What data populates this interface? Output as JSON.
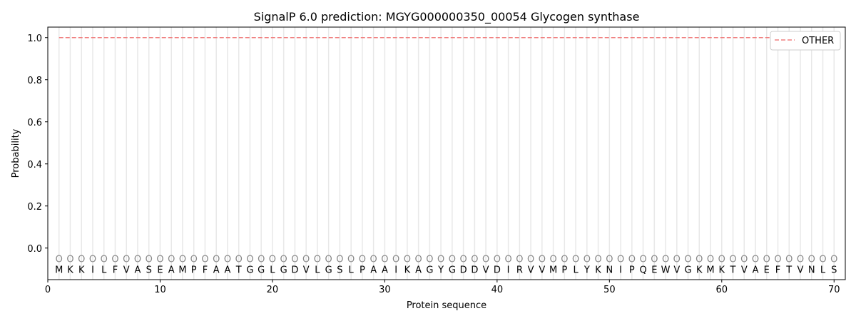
{
  "chart_data": {
    "type": "line",
    "title": "SignalP 6.0 prediction: MGYG000000350_00054 Glycogen synthase",
    "xlabel": "Protein sequence",
    "ylabel": "Probability",
    "xlim": [
      0,
      71
    ],
    "ylim": [
      -0.15,
      1.05
    ],
    "xticks": [
      0,
      10,
      20,
      30,
      40,
      50,
      60,
      70
    ],
    "yticks": [
      0.0,
      0.2,
      0.4,
      0.6,
      0.8,
      1.0
    ],
    "grid": "vertical lines at each residue",
    "legend_position": "top-right",
    "sequence": [
      "M",
      "K",
      "K",
      "I",
      "L",
      "F",
      "V",
      "A",
      "S",
      "E",
      "A",
      "M",
      "P",
      "F",
      "A",
      "A",
      "T",
      "G",
      "G",
      "L",
      "G",
      "D",
      "V",
      "L",
      "G",
      "S",
      "L",
      "P",
      "A",
      "A",
      "I",
      "K",
      "A",
      "G",
      "Y",
      "G",
      "D",
      "D",
      "V",
      "D",
      "I",
      "R",
      "V",
      "V",
      "M",
      "P",
      "L",
      "Y",
      "K",
      "N",
      "I",
      "P",
      "Q",
      "E",
      "W",
      "V",
      "G",
      "K",
      "M",
      "K",
      "T",
      "V",
      "A",
      "E",
      "F",
      "T",
      "V",
      "N",
      "L",
      "S"
    ],
    "predicted_label": "O",
    "series": [
      {
        "name": "OTHER",
        "color": "#f08080",
        "style": "dashed",
        "x": [
          1,
          70
        ],
        "y": [
          1.0,
          1.0
        ]
      }
    ]
  }
}
